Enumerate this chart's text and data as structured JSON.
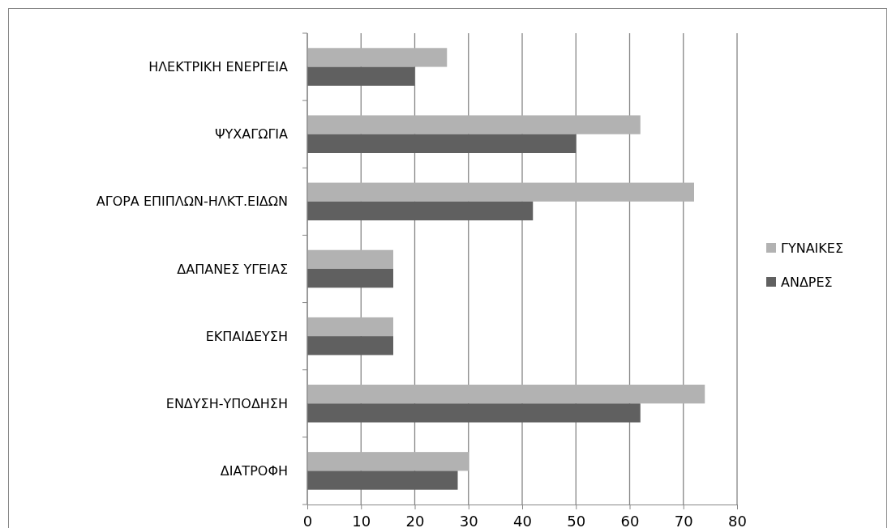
{
  "chart_data": {
    "type": "bar",
    "orientation": "horizontal",
    "categories": [
      "ΗΛΕΚΤΡΙΚΗ ΕΝΕΡΓΕΙΑ",
      "ΨΥΧΑΓΩΓΙΑ",
      "ΑΓΟΡΑ ΕΠΙΠΛΩΝ-ΗΛΚΤ.ΕΙΔΩΝ",
      "ΔΑΠΑΝΕΣ ΥΓΕΙΑΣ",
      "ΕΚΠΑΙΔΕΥΣΗ",
      "ΕΝΔΥΣΗ-ΥΠΟΔΗΣΗ",
      "ΔΙΑΤΡΟΦΗ"
    ],
    "series": [
      {
        "name": "ΓΥΝΑΙΚΕΣ",
        "color": "#b2b2b2",
        "values": [
          26,
          62,
          72,
          16,
          16,
          74,
          30
        ]
      },
      {
        "name": "ΑΝΔΡΕΣ",
        "color": "#606060",
        "values": [
          20,
          50,
          42,
          16,
          16,
          62,
          28
        ]
      }
    ],
    "xlim": [
      0,
      80
    ],
    "xticks": [
      0,
      10,
      20,
      30,
      40,
      50,
      60,
      70,
      80
    ],
    "grid": "x",
    "legend": "right"
  }
}
